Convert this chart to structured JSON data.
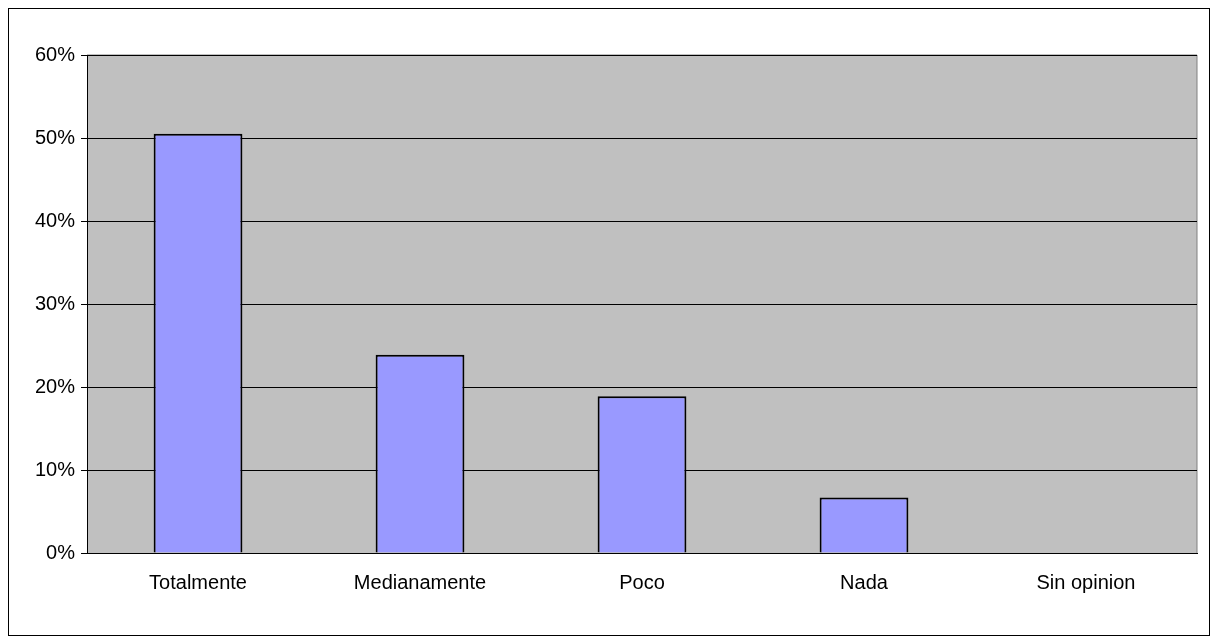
{
  "chart_data": {
    "type": "bar",
    "categories": [
      "Totalmente",
      "Medianamente",
      "Poco",
      "Nada",
      "Sin opinion"
    ],
    "values": [
      50.5,
      23.9,
      18.9,
      6.7,
      0
    ],
    "color": "#9999ff",
    "ylim": [
      0,
      60
    ],
    "yticks": [
      {
        "value": 0,
        "label": "0%"
      },
      {
        "value": 10,
        "label": "10%"
      },
      {
        "value": 20,
        "label": "20%"
      },
      {
        "value": 30,
        "label": "30%"
      },
      {
        "value": 40,
        "label": "40%"
      },
      {
        "value": 50,
        "label": "50%"
      },
      {
        "value": 60,
        "label": "60%"
      }
    ],
    "grid": "y",
    "legend": false
  }
}
